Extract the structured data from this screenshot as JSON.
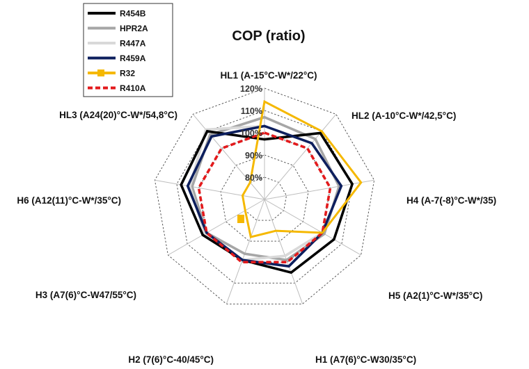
{
  "chart_data": {
    "type": "radar",
    "title": "COP (ratio)",
    "axes": [
      "HL1 (A-15°C-W*/22°C)",
      "HL2 (A-10°C-W*/42,5°C)",
      "H4 (A-7(-8)°C-W*/35)",
      "H5 (A2(1)°C-W*/35°C)",
      "H1 (A7(6)°C-W30/35°C)",
      "H2 (7(6)°C-40/45°C)",
      "H3 (A7(6)°C-W47/55°C)",
      "H6 (A12(11)°C-W*/35°C)",
      "HL3 (A24(20)°C-W*/54,8°C)"
    ],
    "rlim": [
      70,
      120
    ],
    "ticks": [
      80,
      90,
      100,
      110,
      120
    ],
    "tick_labels": [
      "80%",
      "90%",
      "100%",
      "110%",
      "120%"
    ],
    "grid": true,
    "legend_position": "top-left",
    "series": [
      {
        "name": "R454B",
        "color": "#000000",
        "dash": "",
        "values": [
          97,
          109,
          110,
          106,
          105,
          99,
          102,
          108,
          110
        ]
      },
      {
        "name": "HPR2A",
        "color": "#a6a6a6",
        "dash": "",
        "values": [
          107,
          105.5,
          104,
          101,
          99,
          96,
          100,
          103,
          108
        ]
      },
      {
        "name": "R447A",
        "color": "#d9d9d9",
        "dash": "",
        "values": [
          103,
          103,
          105,
          100,
          97,
          99,
          101,
          104,
          111
        ]
      },
      {
        "name": "R459A",
        "color": "#0d1f5e",
        "dash": "",
        "values": [
          103,
          103,
          105,
          100,
          102,
          99,
          100,
          105,
          107
        ]
      },
      {
        "name": "R32",
        "color": "#f5b800",
        "dash": "",
        "values": [
          114,
          110,
          114,
          100,
          85,
          88,
          80,
          80,
          80
        ]
      },
      {
        "name": "R410A",
        "color": "#e31a1c",
        "dash": "7 4",
        "values": [
          100,
          100,
          100,
          100,
          100,
          100,
          100,
          100,
          100
        ]
      }
    ]
  }
}
